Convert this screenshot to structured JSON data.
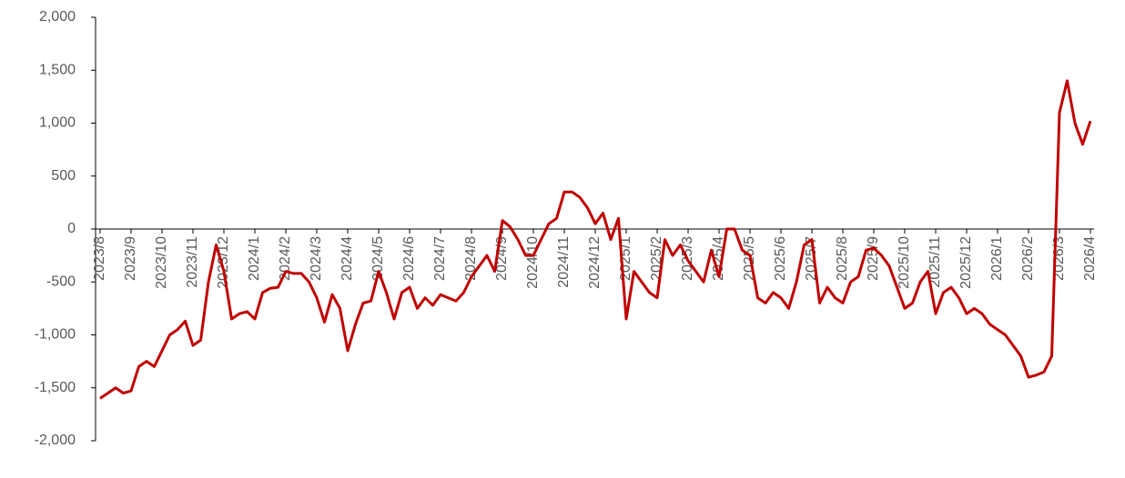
{
  "chart_data": {
    "type": "line",
    "categories": [
      "2023/8",
      null,
      null,
      null,
      "2023/9",
      null,
      null,
      null,
      "2023/10",
      null,
      null,
      null,
      "2023/11",
      null,
      null,
      null,
      "2023/12",
      null,
      null,
      null,
      "2024/1",
      null,
      null,
      null,
      "2024/2",
      null,
      null,
      null,
      "2024/3",
      null,
      null,
      null,
      "2024/4",
      null,
      null,
      null,
      "2024/5",
      null,
      null,
      null,
      "2024/6",
      null,
      null,
      null,
      "2024/7",
      null,
      null,
      null,
      "2024/8",
      null,
      null,
      null,
      "2024/9",
      null,
      null,
      null,
      "2024/10",
      null,
      null,
      null,
      "2024/11",
      null,
      null,
      null,
      "2024/12",
      null,
      null,
      null,
      "2025/1",
      null,
      null,
      null,
      "2025/2",
      null,
      null,
      null,
      "2025/3",
      null,
      null,
      null,
      "2025/4",
      null,
      null,
      null,
      "2025/5",
      null,
      null,
      null,
      "2025/6",
      null,
      null,
      null,
      "2025/7",
      null,
      null,
      null,
      "2025/8",
      null,
      null,
      null,
      "2025/9",
      null,
      null,
      null,
      "2025/10",
      null,
      null,
      null,
      "2025/11",
      null,
      null,
      null,
      "2025/12",
      null,
      null,
      null,
      "2026/1",
      null,
      null,
      null,
      "2026/2",
      null,
      null,
      null,
      "2026/3",
      null,
      null,
      null,
      "2026/4"
    ],
    "values": [
      -1600,
      -1550,
      -1500,
      -1550,
      -1530,
      -1300,
      -1250,
      -1300,
      -1150,
      -1000,
      -950,
      -870,
      -1100,
      -1050,
      -500,
      -150,
      -400,
      -850,
      -800,
      -780,
      -850,
      -600,
      -560,
      -550,
      -400,
      -420,
      -420,
      -500,
      -650,
      -880,
      -620,
      -750,
      -1150,
      -900,
      -700,
      -680,
      -400,
      -600,
      -850,
      -600,
      -550,
      -750,
      -650,
      -720,
      -620,
      -650,
      -680,
      -600,
      -450,
      -350,
      -250,
      -400,
      80,
      20,
      -100,
      -250,
      -250,
      -100,
      50,
      100,
      350,
      350,
      300,
      200,
      50,
      150,
      -100,
      100,
      -850,
      -400,
      -500,
      -600,
      -650,
      -100,
      -250,
      -150,
      -300,
      -400,
      -500,
      -200,
      -450,
      0,
      0,
      -200,
      -250,
      -650,
      -700,
      -600,
      -650,
      -750,
      -500,
      -150,
      -100,
      -700,
      -550,
      -650,
      -700,
      -500,
      -450,
      -200,
      -180,
      -250,
      -350,
      -550,
      -750,
      -700,
      -500,
      -400,
      -800,
      -600,
      -550,
      -650,
      -800,
      -750,
      -800,
      -900,
      -950,
      -1000,
      -1100,
      -1200,
      -1400,
      -1380,
      -1350,
      -1200,
      1100,
      1400,
      1000,
      800,
      1020
    ],
    "color": "#c00000",
    "ylim": [
      -2000,
      2000
    ],
    "yticks": [
      {
        "value": -2000,
        "label": "-2,000"
      },
      {
        "value": -1500,
        "label": "-1,500"
      },
      {
        "value": -1000,
        "label": "-1,000"
      },
      -500,
      0,
      500,
      {
        "value": 1000,
        "label": "1,000"
      },
      {
        "value": 1500,
        "label": "1,500"
      },
      {
        "value": 2000,
        "label": "2,000"
      }
    ]
  }
}
